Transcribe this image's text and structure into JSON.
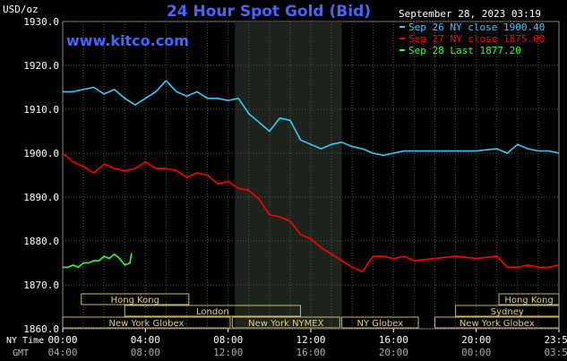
{
  "chart_data": {
    "type": "line",
    "title": "24 Hour Spot Gold (Bid)",
    "ylabel": "USD/oz",
    "watermark": "www.kitco.com",
    "date_label": "September 28, 2023 03:19",
    "ylim": [
      1860.0,
      1930.0
    ],
    "yticks": [
      "1930.0",
      "1920.0",
      "1910.0",
      "1900.0",
      "1890.0",
      "1880.0",
      "1870.0",
      "1860.0"
    ],
    "xlim_hours": [
      0,
      24
    ],
    "x_unit": "hour of day (NY time)",
    "x_axis": {
      "nytime_label": "NY Time",
      "gmt_label": "GMT",
      "nytime_ticks": [
        {
          "hour": 0,
          "label": "00:00"
        },
        {
          "hour": 4,
          "label": "04:00"
        },
        {
          "hour": 8,
          "label": "08:00"
        },
        {
          "hour": 12,
          "label": "12:00"
        },
        {
          "hour": 16,
          "label": "16:00"
        },
        {
          "hour": 20,
          "label": "20:00"
        },
        {
          "hour": 24,
          "label": "23:59"
        }
      ],
      "gmt_ticks": [
        {
          "hour": 0,
          "label": "04:00"
        },
        {
          "hour": 4,
          "label": "08:00"
        },
        {
          "hour": 8,
          "label": "12:00"
        },
        {
          "hour": 12,
          "label": "16:00"
        },
        {
          "hour": 16,
          "label": "20:00"
        },
        {
          "hour": 20,
          "label": "00:00"
        },
        {
          "hour": 24,
          "label": "03:59"
        }
      ]
    },
    "shaded_session_hours": [
      8.33,
      13.5
    ],
    "grid": true,
    "legend_position": "top-right",
    "series": [
      {
        "name": "Sep 26 NY close 1900.40",
        "color": "#33CCFF",
        "points": [
          [
            0.0,
            1914.0
          ],
          [
            0.5,
            1914.0
          ],
          [
            1.0,
            1914.5
          ],
          [
            1.5,
            1915.0
          ],
          [
            2.0,
            1913.5
          ],
          [
            2.5,
            1914.5
          ],
          [
            3.0,
            1912.5
          ],
          [
            3.5,
            1911.0
          ],
          [
            4.0,
            1912.5
          ],
          [
            4.5,
            1914.0
          ],
          [
            5.0,
            1916.5
          ],
          [
            5.5,
            1914.0
          ],
          [
            6.0,
            1913.0
          ],
          [
            6.5,
            1914.0
          ],
          [
            7.0,
            1912.5
          ],
          [
            7.5,
            1912.5
          ],
          [
            8.0,
            1912.0
          ],
          [
            8.5,
            1912.5
          ],
          [
            9.0,
            1909.0
          ],
          [
            9.5,
            1907.0
          ],
          [
            10.0,
            1905.0
          ],
          [
            10.5,
            1908.0
          ],
          [
            11.0,
            1907.5
          ],
          [
            11.5,
            1903.0
          ],
          [
            12.0,
            1902.0
          ],
          [
            12.5,
            1901.0
          ],
          [
            13.0,
            1902.0
          ],
          [
            13.5,
            1902.5
          ],
          [
            14.0,
            1901.5
          ],
          [
            14.5,
            1901.0
          ],
          [
            15.0,
            1900.0
          ],
          [
            15.5,
            1899.5
          ],
          [
            16.0,
            1900.0
          ],
          [
            16.5,
            1900.5
          ],
          [
            17.0,
            1900.5
          ],
          [
            18.0,
            1900.5
          ],
          [
            19.0,
            1900.5
          ],
          [
            20.0,
            1900.5
          ],
          [
            21.0,
            1901.0
          ],
          [
            21.5,
            1900.0
          ],
          [
            22.0,
            1902.0
          ],
          [
            22.5,
            1901.0
          ],
          [
            23.0,
            1900.5
          ],
          [
            23.5,
            1900.5
          ],
          [
            24.0,
            1900.0
          ]
        ]
      },
      {
        "name": "Sep 27 NY close 1875.00",
        "color": "#FF0000",
        "points": [
          [
            0.0,
            1900.0
          ],
          [
            0.5,
            1898.0
          ],
          [
            1.0,
            1897.0
          ],
          [
            1.5,
            1895.5
          ],
          [
            2.0,
            1897.5
          ],
          [
            2.5,
            1896.5
          ],
          [
            3.0,
            1896.0
          ],
          [
            3.5,
            1896.5
          ],
          [
            4.0,
            1898.0
          ],
          [
            4.5,
            1896.5
          ],
          [
            5.0,
            1896.5
          ],
          [
            5.5,
            1896.0
          ],
          [
            6.0,
            1894.5
          ],
          [
            6.5,
            1895.5
          ],
          [
            7.0,
            1895.0
          ],
          [
            7.5,
            1893.0
          ],
          [
            8.0,
            1893.5
          ],
          [
            8.5,
            1892.0
          ],
          [
            9.0,
            1891.5
          ],
          [
            9.5,
            1889.5
          ],
          [
            10.0,
            1886.0
          ],
          [
            10.5,
            1885.5
          ],
          [
            11.0,
            1884.5
          ],
          [
            11.5,
            1881.5
          ],
          [
            12.0,
            1880.5
          ],
          [
            12.5,
            1878.5
          ],
          [
            13.0,
            1877.0
          ],
          [
            13.5,
            1875.5
          ],
          [
            14.0,
            1874.0
          ],
          [
            14.5,
            1873.0
          ],
          [
            15.0,
            1876.5
          ],
          [
            15.5,
            1876.5
          ],
          [
            16.0,
            1876.0
          ],
          [
            16.5,
            1876.5
          ],
          [
            17.0,
            1875.5
          ],
          [
            18.0,
            1876.0
          ],
          [
            19.0,
            1876.5
          ],
          [
            20.0,
            1876.0
          ],
          [
            21.0,
            1876.5
          ],
          [
            21.5,
            1874.0
          ],
          [
            22.0,
            1874.0
          ],
          [
            22.5,
            1874.5
          ],
          [
            23.0,
            1874.0
          ],
          [
            23.5,
            1874.0
          ],
          [
            24.0,
            1874.5
          ]
        ]
      },
      {
        "name": "Sep 28 Last 1877.20",
        "color": "#33FF33",
        "points": [
          [
            0.0,
            1874.0
          ],
          [
            0.25,
            1874.0
          ],
          [
            0.5,
            1874.5
          ],
          [
            0.75,
            1874.0
          ],
          [
            1.0,
            1875.0
          ],
          [
            1.25,
            1875.0
          ],
          [
            1.5,
            1875.5
          ],
          [
            1.75,
            1875.5
          ],
          [
            2.0,
            1876.5
          ],
          [
            2.25,
            1876.0
          ],
          [
            2.5,
            1877.0
          ],
          [
            2.75,
            1876.0
          ],
          [
            3.0,
            1874.5
          ],
          [
            3.25,
            1875.0
          ],
          [
            3.33,
            1877.2
          ]
        ]
      }
    ],
    "market_sessions": [
      {
        "label": "Hong Kong",
        "row": 1,
        "start": 0.9,
        "end": 6.1
      },
      {
        "label": "Hong Kong",
        "row": 1,
        "start": 21.1,
        "end": 24.0
      },
      {
        "label": "London",
        "row": 2,
        "start": 3.0,
        "end": 11.5
      },
      {
        "label": "Sydney",
        "row": 2,
        "start": 19.0,
        "end": 24.0
      },
      {
        "label": "New York Globex",
        "row": 3,
        "start": 0.0,
        "end": 8.1
      },
      {
        "label": "New York NYMEX",
        "row": 3,
        "start": 8.2,
        "end": 13.4
      },
      {
        "label": "NY Globex",
        "row": 3,
        "start": 13.5,
        "end": 17.2
      },
      {
        "label": "New York Globex",
        "row": 3,
        "start": 18.0,
        "end": 24.0
      }
    ]
  }
}
